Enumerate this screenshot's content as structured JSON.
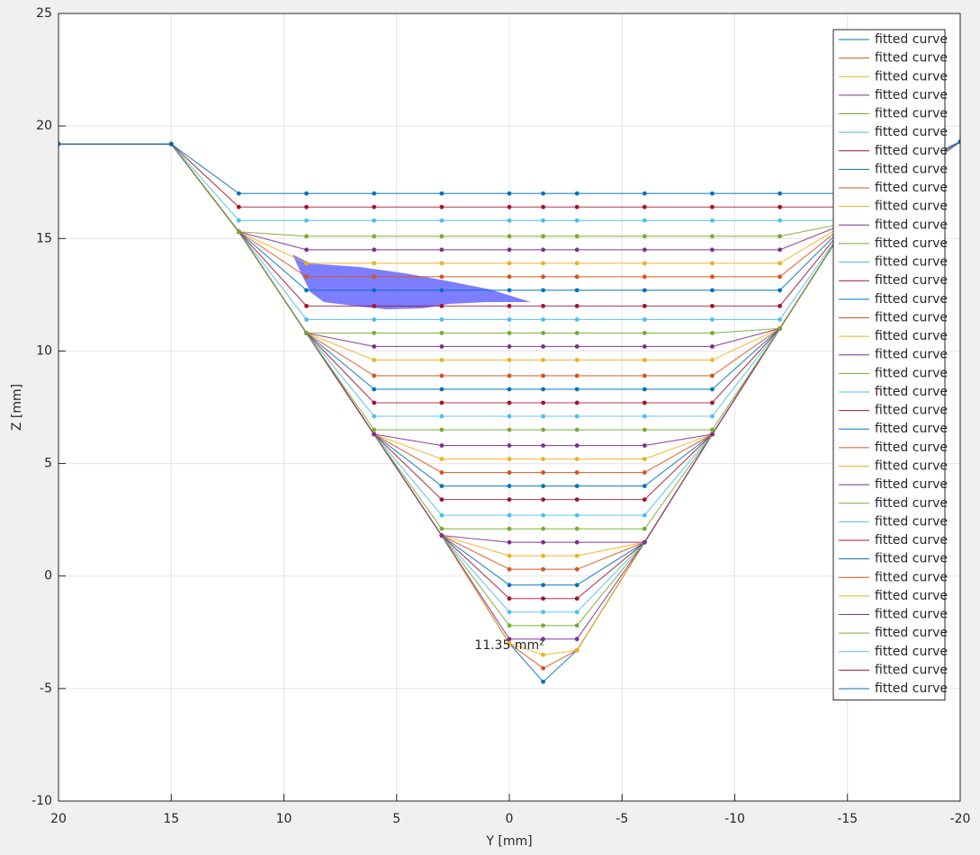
{
  "chart_data": {
    "type": "line",
    "xlabel": "Y [mm]",
    "ylabel": "Z [mm]",
    "annotation": "11.35 mm²",
    "xlim": [
      20,
      -20
    ],
    "xticks": [
      20,
      15,
      10,
      5,
      0,
      -5,
      -10,
      -15,
      -20
    ],
    "ylim": [
      -10,
      25
    ],
    "yticks": [
      -10,
      -5,
      0,
      5,
      10,
      15,
      20,
      25
    ],
    "grid": true,
    "legend": "northeast",
    "x": [
      20,
      15,
      12,
      9,
      6,
      3,
      0,
      -1.5,
      -3,
      -6,
      -9,
      -12,
      -15,
      -20
    ],
    "series": [
      {
        "name": "fitted curve",
        "color": "#0072BD",
        "values": [
          19.2,
          19.2,
          15.3,
          10.8,
          6.3,
          1.8,
          -3,
          -4.7,
          -3.3,
          1.5,
          6.3,
          11,
          15.7,
          19.3
        ]
      },
      {
        "name": "fitted curve",
        "color": "#D95319",
        "values": [
          19.2,
          19.2,
          15.3,
          10.8,
          6.3,
          1.8,
          -3,
          -4.1,
          -3.3,
          1.5,
          6.3,
          11,
          15.7,
          19.3
        ]
      },
      {
        "name": "fitted curve",
        "color": "#EDB120",
        "values": [
          19.2,
          19.2,
          15.3,
          10.8,
          6.3,
          1.8,
          -3,
          -3.5,
          -3.3,
          1.5,
          6.3,
          11,
          15.7,
          19.3
        ]
      },
      {
        "name": "fitted curve",
        "color": "#7E2F8E",
        "values": [
          19.2,
          19.2,
          15.3,
          10.8,
          6.3,
          1.8,
          -2.8,
          -2.8,
          -2.8,
          1.5,
          6.3,
          11,
          15.7,
          19.3
        ]
      },
      {
        "name": "fitted curve",
        "color": "#77AC30",
        "values": [
          19.2,
          19.2,
          15.3,
          10.8,
          6.3,
          1.8,
          -2.2,
          -2.2,
          -2.2,
          1.5,
          6.3,
          11,
          15.7,
          19.3
        ]
      },
      {
        "name": "fitted curve",
        "color": "#4DBEEE",
        "values": [
          19.2,
          19.2,
          15.3,
          10.8,
          6.3,
          1.8,
          -1.6,
          -1.6,
          -1.6,
          1.5,
          6.3,
          11,
          15.7,
          19.3
        ]
      },
      {
        "name": "fitted curve",
        "color": "#A2142F",
        "values": [
          19.2,
          19.2,
          15.3,
          10.8,
          6.3,
          1.8,
          -1.0,
          -1.0,
          -1.0,
          1.5,
          6.3,
          11,
          15.7,
          19.3
        ]
      },
      {
        "name": "fitted curve",
        "color": "#0072BD",
        "values": [
          19.2,
          19.2,
          15.3,
          10.8,
          6.3,
          1.8,
          -0.4,
          -0.4,
          -0.4,
          1.5,
          6.3,
          11,
          15.7,
          19.3
        ]
      },
      {
        "name": "fitted curve",
        "color": "#D95319",
        "values": [
          19.2,
          19.2,
          15.3,
          10.8,
          6.3,
          1.8,
          0.3,
          0.3,
          0.3,
          1.5,
          6.3,
          11,
          15.7,
          19.3
        ]
      },
      {
        "name": "fitted curve",
        "color": "#EDB120",
        "values": [
          19.2,
          19.2,
          15.3,
          10.8,
          6.3,
          1.8,
          0.9,
          0.9,
          0.9,
          1.5,
          6.3,
          11,
          15.7,
          19.3
        ]
      },
      {
        "name": "fitted curve",
        "color": "#7E2F8E",
        "values": [
          19.2,
          19.2,
          15.3,
          10.8,
          6.3,
          1.8,
          1.5,
          1.5,
          1.5,
          1.5,
          6.3,
          11,
          15.7,
          19.3
        ]
      },
      {
        "name": "fitted curve",
        "color": "#77AC30",
        "values": [
          19.2,
          19.2,
          15.3,
          10.8,
          6.3,
          2.1,
          2.1,
          2.1,
          2.1,
          2.1,
          6.3,
          11,
          15.7,
          19.3
        ]
      },
      {
        "name": "fitted curve",
        "color": "#4DBEEE",
        "values": [
          19.2,
          19.2,
          15.3,
          10.8,
          6.3,
          2.7,
          2.7,
          2.7,
          2.7,
          2.7,
          6.3,
          11,
          15.7,
          19.3
        ]
      },
      {
        "name": "fitted curve",
        "color": "#A2142F",
        "values": [
          19.2,
          19.2,
          15.3,
          10.8,
          6.3,
          3.4,
          3.4,
          3.4,
          3.4,
          3.4,
          6.3,
          11,
          15.7,
          19.3
        ]
      },
      {
        "name": "fitted curve",
        "color": "#0072BD",
        "values": [
          19.2,
          19.2,
          15.3,
          10.8,
          6.3,
          4.0,
          4.0,
          4.0,
          4.0,
          4.0,
          6.3,
          11,
          15.7,
          19.3
        ]
      },
      {
        "name": "fitted curve",
        "color": "#D95319",
        "values": [
          19.2,
          19.2,
          15.3,
          10.8,
          6.3,
          4.6,
          4.6,
          4.6,
          4.6,
          4.6,
          6.3,
          11,
          15.7,
          19.3
        ]
      },
      {
        "name": "fitted curve",
        "color": "#EDB120",
        "values": [
          19.2,
          19.2,
          15.3,
          10.8,
          6.3,
          5.2,
          5.2,
          5.2,
          5.2,
          5.2,
          6.3,
          11,
          15.7,
          19.3
        ]
      },
      {
        "name": "fitted curve",
        "color": "#7E2F8E",
        "values": [
          19.2,
          19.2,
          15.3,
          10.8,
          6.3,
          5.8,
          5.8,
          5.8,
          5.8,
          5.8,
          6.3,
          11,
          15.7,
          19.3
        ]
      },
      {
        "name": "fitted curve",
        "color": "#77AC30",
        "values": [
          19.2,
          19.2,
          15.3,
          10.8,
          6.5,
          6.5,
          6.5,
          6.5,
          6.5,
          6.5,
          6.5,
          11,
          15.7,
          19.3
        ]
      },
      {
        "name": "fitted curve",
        "color": "#4DBEEE",
        "values": [
          19.2,
          19.2,
          15.3,
          10.8,
          7.1,
          7.1,
          7.1,
          7.1,
          7.1,
          7.1,
          7.1,
          11,
          15.7,
          19.3
        ]
      },
      {
        "name": "fitted curve",
        "color": "#A2142F",
        "values": [
          19.2,
          19.2,
          15.3,
          10.8,
          7.7,
          7.7,
          7.7,
          7.7,
          7.7,
          7.7,
          7.7,
          11,
          15.7,
          19.3
        ]
      },
      {
        "name": "fitted curve",
        "color": "#0072BD",
        "values": [
          19.2,
          19.2,
          15.3,
          10.8,
          8.3,
          8.3,
          8.3,
          8.3,
          8.3,
          8.3,
          8.3,
          11,
          15.7,
          19.3
        ]
      },
      {
        "name": "fitted curve",
        "color": "#D95319",
        "values": [
          19.2,
          19.2,
          15.3,
          10.8,
          8.9,
          8.9,
          8.9,
          8.9,
          8.9,
          8.9,
          8.9,
          11,
          15.7,
          19.3
        ]
      },
      {
        "name": "fitted curve",
        "color": "#EDB120",
        "values": [
          19.2,
          19.2,
          15.3,
          10.8,
          9.6,
          9.6,
          9.6,
          9.6,
          9.6,
          9.6,
          9.6,
          11,
          15.7,
          19.3
        ]
      },
      {
        "name": "fitted curve",
        "color": "#7E2F8E",
        "values": [
          19.2,
          19.2,
          15.3,
          10.8,
          10.2,
          10.2,
          10.2,
          10.2,
          10.2,
          10.2,
          10.2,
          11,
          15.7,
          19.3
        ]
      },
      {
        "name": "fitted curve",
        "color": "#77AC30",
        "values": [
          19.2,
          19.2,
          15.3,
          10.8,
          10.8,
          10.8,
          10.8,
          10.8,
          10.8,
          10.8,
          10.8,
          11,
          15.7,
          19.3
        ]
      },
      {
        "name": "fitted curve",
        "color": "#4DBEEE",
        "values": [
          19.2,
          19.2,
          15.3,
          11.4,
          11.4,
          11.4,
          11.4,
          11.4,
          11.4,
          11.4,
          11.4,
          11.4,
          15.7,
          19.3
        ]
      },
      {
        "name": "fitted curve",
        "color": "#A2142F",
        "values": [
          19.2,
          19.2,
          15.3,
          12.0,
          12.0,
          12.0,
          12.0,
          12.0,
          12.0,
          12.0,
          12.0,
          12.0,
          15.7,
          19.3
        ]
      },
      {
        "name": "fitted curve",
        "color": "#0072BD",
        "values": [
          19.2,
          19.2,
          15.3,
          12.7,
          12.7,
          12.7,
          12.7,
          12.7,
          12.7,
          12.7,
          12.7,
          12.7,
          15.7,
          19.3
        ]
      },
      {
        "name": "fitted curve",
        "color": "#D95319",
        "values": [
          19.2,
          19.2,
          15.3,
          13.3,
          13.3,
          13.3,
          13.3,
          13.3,
          13.3,
          13.3,
          13.3,
          13.3,
          15.7,
          19.3
        ]
      },
      {
        "name": "fitted curve",
        "color": "#EDB120",
        "values": [
          19.2,
          19.2,
          15.3,
          13.9,
          13.9,
          13.9,
          13.9,
          13.9,
          13.9,
          13.9,
          13.9,
          13.9,
          15.7,
          19.3
        ]
      },
      {
        "name": "fitted curve",
        "color": "#7E2F8E",
        "values": [
          19.2,
          19.2,
          15.3,
          14.5,
          14.5,
          14.5,
          14.5,
          14.5,
          14.5,
          14.5,
          14.5,
          14.5,
          15.7,
          19.3
        ]
      },
      {
        "name": "fitted curve",
        "color": "#77AC30",
        "values": [
          19.2,
          19.2,
          15.3,
          15.1,
          15.1,
          15.1,
          15.1,
          15.1,
          15.1,
          15.1,
          15.1,
          15.1,
          15.7,
          19.3
        ]
      },
      {
        "name": "fitted curve",
        "color": "#4DBEEE",
        "values": [
          19.2,
          19.2,
          15.8,
          15.8,
          15.8,
          15.8,
          15.8,
          15.8,
          15.8,
          15.8,
          15.8,
          15.8,
          15.8,
          19.3
        ]
      },
      {
        "name": "fitted curve",
        "color": "#A2142F",
        "values": [
          19.2,
          19.2,
          16.4,
          16.4,
          16.4,
          16.4,
          16.4,
          16.4,
          16.4,
          16.4,
          16.4,
          16.4,
          16.4,
          19.3
        ]
      },
      {
        "name": "fitted curve",
        "color": "#0072BD",
        "values": [
          19.2,
          19.2,
          17.0,
          17.0,
          17.0,
          17.0,
          17.0,
          17.0,
          17.0,
          17.0,
          17.0,
          17.0,
          17.0,
          19.3
        ]
      }
    ]
  }
}
